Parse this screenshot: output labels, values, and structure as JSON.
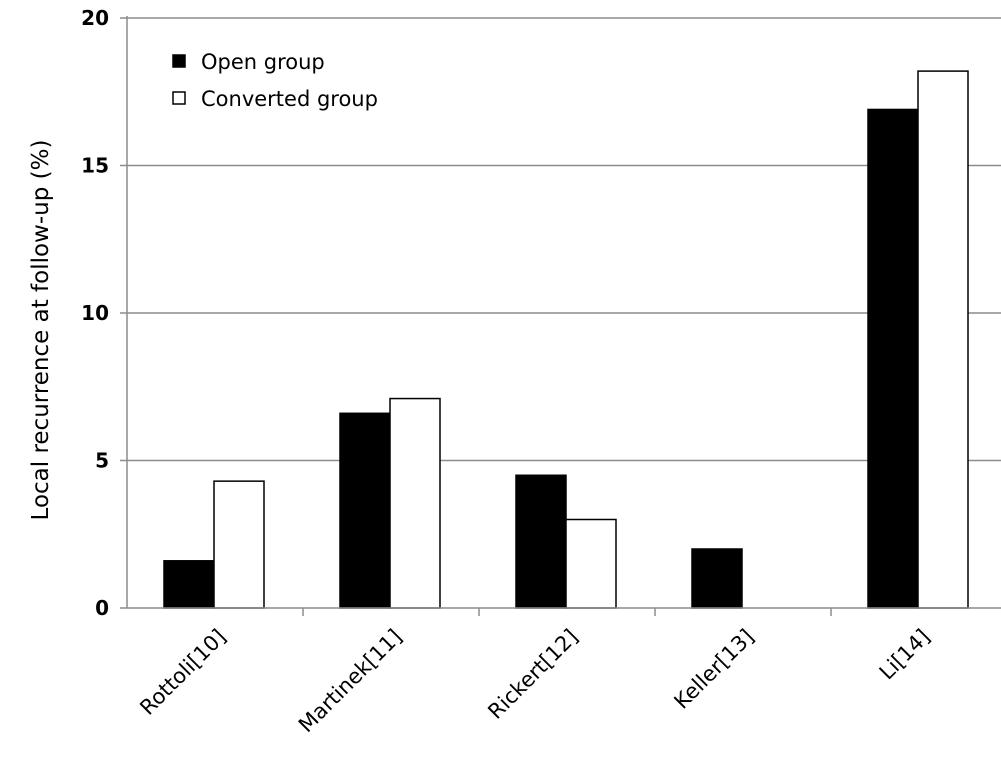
{
  "chart_data": {
    "type": "bar",
    "title": "",
    "xlabel": "",
    "ylabel": "Local recurrence at follow-up (%)",
    "ylim": [
      0,
      20
    ],
    "yticks": [
      0,
      5,
      10,
      15,
      20
    ],
    "grid": true,
    "legend_position": "top-left",
    "categories": [
      "Rottoli[10]",
      "Martinek[11]",
      "Rickert[12]",
      "Keller[13]",
      "Li[14]"
    ],
    "series": [
      {
        "name": "Open group",
        "color": "#000000",
        "values": [
          1.6,
          6.6,
          4.5,
          2.0,
          16.9
        ]
      },
      {
        "name": "Converted group",
        "color": "#ffffff",
        "values": [
          4.3,
          7.1,
          3.0,
          null,
          18.2
        ]
      }
    ]
  }
}
